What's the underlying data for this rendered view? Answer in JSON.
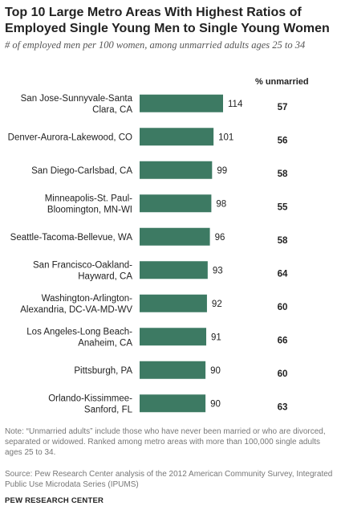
{
  "header": {
    "title": "Top 10 Large Metro Areas With Highest Ratios of Employed Single Young Men to Single Young Women",
    "subtitle": "# of employed men per 100 women, among unmarried adults ages 25 to 34",
    "column_header": "% unmarried"
  },
  "chart_data": {
    "type": "bar",
    "orientation": "horizontal",
    "categories": [
      [
        "San Jose-Sunnyvale-Santa",
        "Clara, CA"
      ],
      [
        "Denver-Aurora-Lakewood, CO"
      ],
      [
        "San Diego-Carlsbad, CA"
      ],
      [
        "Minneapolis-St. Paul-",
        "Bloomington, MN-WI"
      ],
      [
        "Seattle-Tacoma-Bellevue, WA"
      ],
      [
        "San Francisco-Oakland-",
        "Hayward, CA"
      ],
      [
        "Washington-Arlington-",
        "Alexandria, DC-VA-MD-WV"
      ],
      [
        "Los Angeles-Long Beach-",
        "Anaheim, CA"
      ],
      [
        "Pittsburgh, PA"
      ],
      [
        "Orlando-Kissimmee-",
        "Sanford, FL"
      ]
    ],
    "values": [
      114,
      101,
      99,
      98,
      96,
      93,
      92,
      91,
      90,
      90
    ],
    "unmarried_pct": [
      57,
      56,
      58,
      55,
      58,
      64,
      60,
      66,
      60,
      63
    ],
    "bar_color": "#3d7a63",
    "grid": false,
    "legend": "none"
  },
  "footer": {
    "note": "Note: “Unmarried adults” include those who have never been married or who are divorced, separated or widowed. Ranked among metro areas with more than 100,000 single adults ages 25 to 34.",
    "source": "Source: Pew Research Center analysis of the 2012 American Community Survey, Integrated Public Use Microdata Series (IPUMS)",
    "brand": "PEW RESEARCH CENTER"
  }
}
